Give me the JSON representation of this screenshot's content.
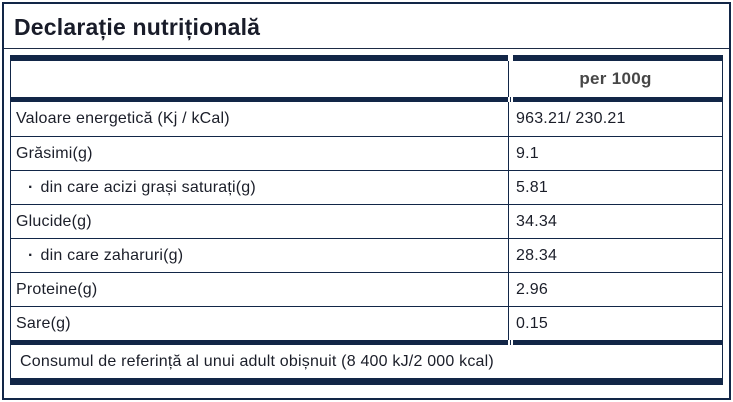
{
  "page": {
    "title": "Declarație nutrițională"
  },
  "colors": {
    "navy": "#122647",
    "text": "#1b1e29",
    "header_text": "#474747"
  },
  "table": {
    "bullet_char": "·",
    "header": {
      "value_col": "per 100g"
    },
    "rows": [
      {
        "label": "Valoare energetică (Kj / kCal)",
        "value": "963.21/ 230.21"
      },
      {
        "label": "Grăsimi(g)",
        "value": "9.1"
      },
      {
        "label": "din care acizi grași saturați(g)",
        "value": "5.81"
      },
      {
        "label": "Glucide(g)",
        "value": "34.34"
      },
      {
        "label": "din care zaharuri(g)",
        "value": "28.34"
      },
      {
        "label": "Proteine(g)",
        "value": "2.96"
      },
      {
        "label": "Sare(g)",
        "value": "0.15"
      }
    ],
    "footer": "Consumul de referință al unui adult obișnuit (8 400 kJ/2 000 kcal)"
  }
}
